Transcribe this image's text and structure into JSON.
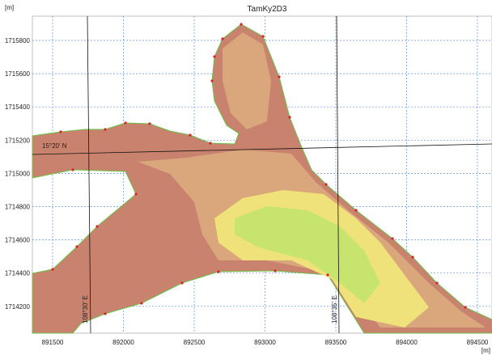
{
  "title": "TamKy2D3",
  "y_unit": "[m]",
  "x_unit": "[m]",
  "yticks": [
    "1715800",
    "1715600",
    "1715400",
    "1715200",
    "1715000",
    "1714800",
    "1714600",
    "1714400",
    "1714200"
  ],
  "xticks": [
    "891500",
    "892000",
    "892500",
    "893000",
    "893500",
    "894000",
    "894500"
  ],
  "annotations": {
    "latitude": "15°20' N",
    "longitude_1": "108°30' E",
    "longitude_2": "108°35' E"
  }
}
